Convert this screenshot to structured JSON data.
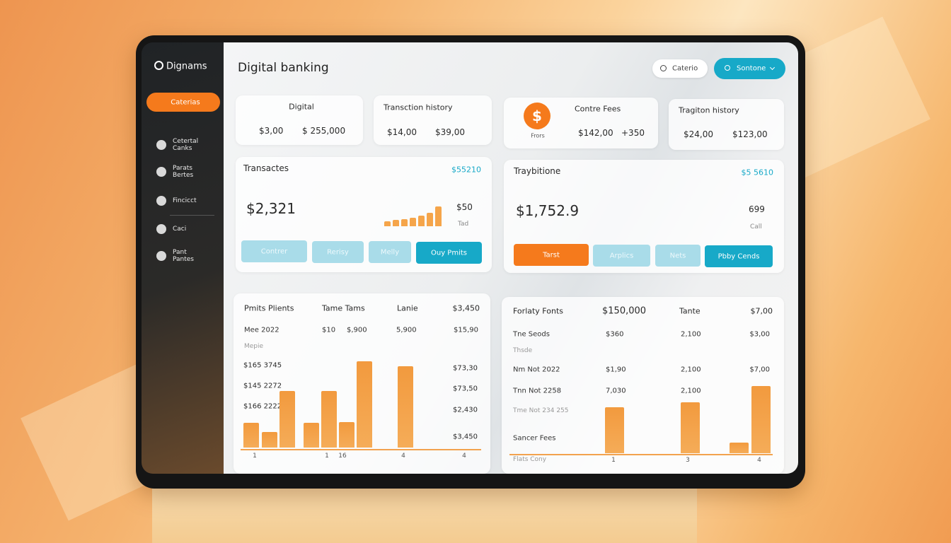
{
  "sidebar": {
    "logo": "Dignams",
    "button": "Caterias",
    "menu": [
      "Cetertal Canks",
      "Parats Bertes",
      "Fincicct",
      "Caci",
      "Pant Pantes"
    ]
  },
  "header": {
    "title": "Digital banking",
    "search": "Caterio",
    "button": "Sontone"
  },
  "summary_cards": [
    {
      "title": "Digital",
      "values": [
        "$3,00",
        "$ 255,000"
      ]
    },
    {
      "title": "Transction history",
      "values": [
        "$14,00",
        "$39,00"
      ]
    },
    {
      "title": "Contre Fees",
      "icon": "$",
      "icon_label": "Frors",
      "values": [
        "$142,00",
        "+350"
      ]
    },
    {
      "title": "Tragiton history",
      "values": [
        "$24,00",
        "$123,00"
      ]
    }
  ],
  "panels": [
    {
      "title": "Transactes",
      "badge": "$55210",
      "amount": "$2,321",
      "side_value": "$50",
      "side_label": "Tad",
      "bars": [
        7,
        9,
        10,
        12,
        15,
        19,
        28
      ],
      "buttons": [
        "Contrer",
        "Rerisy",
        "Melly",
        "Ouy Pmits"
      ]
    },
    {
      "title": "Traybitione",
      "badge": "$5 5610",
      "amount": "$1,752.9",
      "side_value": "699",
      "side_label": "Call",
      "buttons": [
        "Tarst",
        "Arplics",
        "Nets",
        "Pbby Cends"
      ]
    }
  ],
  "tables": [
    {
      "header": [
        "Pmits Plients",
        "Tame Tams",
        "Lanie",
        "$3,450"
      ],
      "rows": [
        [
          "Mee 2022",
          "$10",
          "$,900",
          "5,900",
          "$15,90"
        ],
        [
          "Mepie"
        ]
      ],
      "y_labels": [
        "$165 3745",
        "$145 2272",
        "$166 2222"
      ],
      "right_labels": [
        "$73,30",
        "$73,50",
        "$2,430",
        "$3,450"
      ],
      "bars": [
        35,
        22,
        80,
        35,
        80,
        36,
        122,
        115
      ],
      "x_labels": [
        "1",
        "1",
        "16",
        "4",
        "4"
      ]
    },
    {
      "header": [
        "Forlaty Fonts",
        "$150,000",
        "Tante",
        "$7,00"
      ],
      "rows": [
        [
          "Tne Seods",
          "$360",
          "2,100",
          "$3,00"
        ],
        [
          "Thsde"
        ],
        [
          "Nm Not 2022",
          "$1,90",
          "2,100",
          "$7,00"
        ],
        [
          "Tnn Not 2258",
          "7,030",
          "2,100"
        ],
        [
          "Tme Not 234 255"
        ],
        [
          "Sancer Fees"
        ],
        [
          "Flats Cony"
        ]
      ],
      "bars": [
        65,
        72,
        15,
        95
      ],
      "x_labels": [
        "1",
        "3",
        "4"
      ]
    }
  ]
}
